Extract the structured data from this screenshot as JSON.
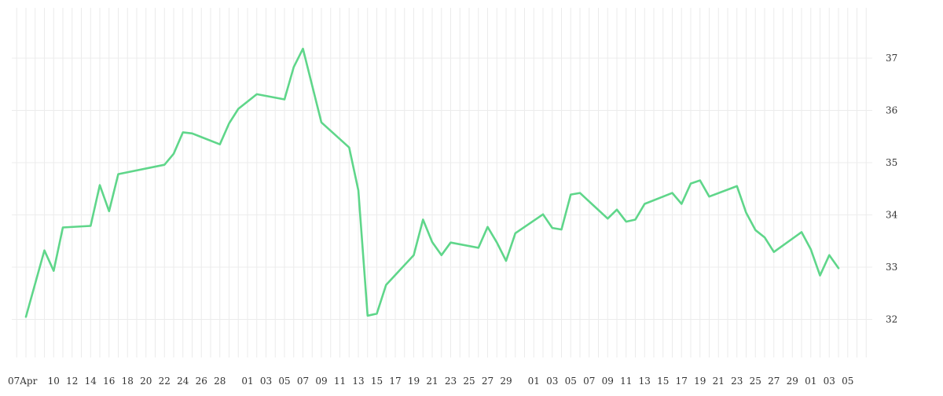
{
  "chart_data": {
    "type": "line",
    "title": "",
    "xlabel": "",
    "ylabel": "",
    "ylim": [
      31,
      38
    ],
    "yticks": [
      32,
      33,
      34,
      35,
      36,
      37
    ],
    "y_axis_side": "right",
    "grid": true,
    "legend": "none",
    "x_tick_labels": [
      "07Apr",
      "10",
      "12",
      "14",
      "16",
      "18",
      "20",
      "22",
      "24",
      "26",
      "28",
      "01",
      "03",
      "05",
      "07",
      "09",
      "11",
      "13",
      "15",
      "17",
      "19",
      "21",
      "23",
      "25",
      "27",
      "29",
      "01",
      "03",
      "05",
      "07",
      "09",
      "11",
      "13",
      "15",
      "17",
      "19",
      "21",
      "23",
      "25",
      "27",
      "29",
      "01",
      "03",
      "05"
    ],
    "series": [
      {
        "color": "#5fd68a",
        "x": [
          "2021-04-07",
          "2021-04-09",
          "2021-04-10",
          "2021-04-11",
          "2021-04-14",
          "2021-04-15",
          "2021-04-16",
          "2021-04-17",
          "2021-04-22",
          "2021-04-23",
          "2021-04-24",
          "2021-04-25",
          "2021-04-28",
          "2021-04-29",
          "2021-04-30",
          "2021-05-02",
          "2021-05-05",
          "2021-05-06",
          "2021-05-07",
          "2021-05-09",
          "2021-05-12",
          "2021-05-13",
          "2021-05-14",
          "2021-05-15",
          "2021-05-16",
          "2021-05-19",
          "2021-05-20",
          "2021-05-21",
          "2021-05-22",
          "2021-05-23",
          "2021-05-26",
          "2021-05-27",
          "2021-05-28",
          "2021-05-29",
          "2021-05-30",
          "2021-06-02",
          "2021-06-03",
          "2021-06-04",
          "2021-06-05",
          "2021-06-06",
          "2021-06-09",
          "2021-06-10",
          "2021-06-11",
          "2021-06-12",
          "2021-06-13",
          "2021-06-16",
          "2021-06-17",
          "2021-06-18",
          "2021-06-19",
          "2021-06-20",
          "2021-06-23",
          "2021-06-24",
          "2021-06-25",
          "2021-06-26",
          "2021-06-27",
          "2021-06-30",
          "2021-07-01",
          "2021-07-02",
          "2021-07-03",
          "2021-07-04"
        ],
        "values": [
          32.05,
          33.32,
          32.93,
          33.76,
          33.79,
          34.57,
          34.07,
          34.78,
          34.96,
          35.17,
          35.58,
          35.56,
          35.35,
          35.75,
          36.03,
          36.31,
          36.21,
          36.83,
          37.18,
          35.77,
          35.29,
          34.47,
          32.07,
          32.11,
          32.66,
          33.23,
          33.91,
          33.48,
          33.23,
          33.47,
          33.37,
          33.77,
          33.47,
          33.12,
          33.65,
          34.01,
          33.75,
          33.72,
          34.39,
          34.42,
          33.93,
          34.1,
          33.87,
          33.91,
          34.21,
          34.42,
          34.21,
          34.6,
          34.66,
          34.35,
          34.55,
          34.04,
          33.71,
          33.57,
          33.29,
          33.67,
          33.34,
          32.84,
          33.23,
          32.98
        ]
      }
    ]
  }
}
